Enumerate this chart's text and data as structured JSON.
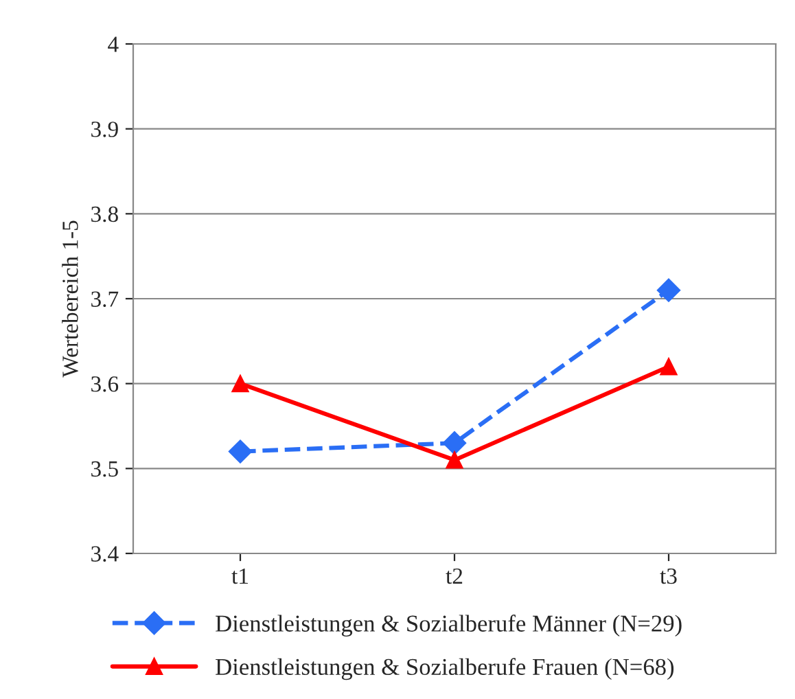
{
  "chart_data": {
    "type": "line",
    "ylabel": "Wertebereich 1-5",
    "categories": [
      "t1",
      "t2",
      "t3"
    ],
    "series": [
      {
        "name": "Dienstleistungen & Sozialberufe Männer (N=29)",
        "color": "#2a6ef5",
        "values": [
          3.52,
          3.53,
          3.71
        ],
        "marker": "diamond",
        "line_style": "dashed"
      },
      {
        "name": "Dienstleistungen & Sozialberufe Frauen (N=68)",
        "color": "#ff0000",
        "values": [
          3.6,
          3.51,
          3.62
        ],
        "marker": "triangle",
        "line_style": "solid"
      }
    ],
    "ylim": [
      3.4,
      4
    ],
    "yticks": [
      3.4,
      3.5,
      3.6,
      3.7,
      3.8,
      3.9,
      4
    ],
    "grid": "y",
    "legend": "bottom"
  }
}
